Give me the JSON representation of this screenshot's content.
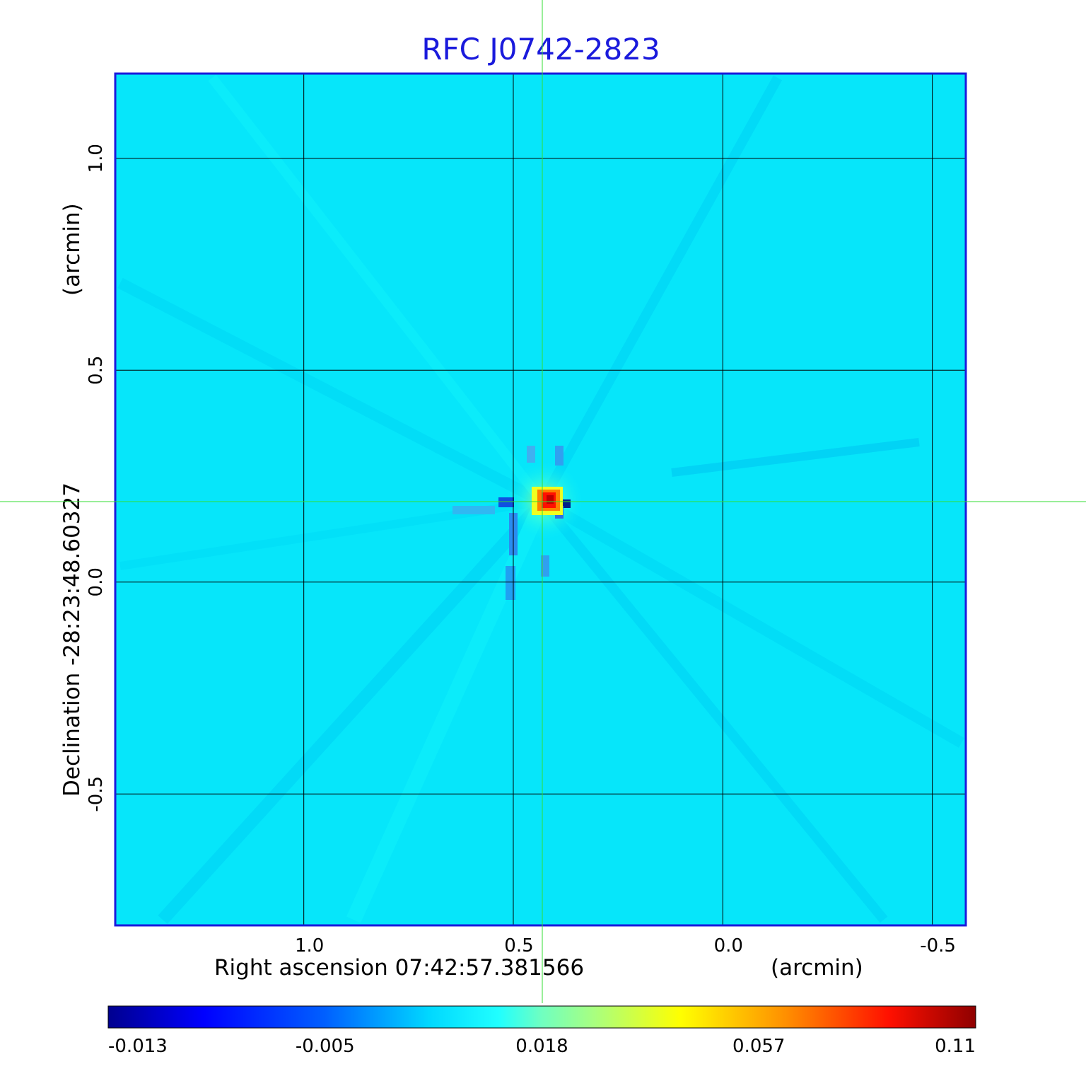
{
  "chart_data": {
    "type": "heatmap",
    "title": "RFC J0742-2823",
    "title_color": "#1a1adc",
    "frame_color": "#1a1adc",
    "crosshair_color": "#33dd33",
    "xlabel": "Right ascension  07:42:57.381566",
    "xunit": "(arcmin)",
    "ylabel": "Declination  -28:23:48.60327",
    "yunit": "(arcmin)",
    "x_ticks": [
      "1.0",
      "0.5",
      "0.0",
      "-0.5"
    ],
    "x_tick_values": [
      1.0,
      0.5,
      0.0,
      -0.5
    ],
    "y_ticks": [
      "1.0",
      "0.5",
      "0.0",
      "-0.5"
    ],
    "y_tick_values": [
      1.0,
      0.5,
      0.0,
      -0.5
    ],
    "xlim": [
      1.45,
      -0.58
    ],
    "ylim": [
      -0.81,
      1.2
    ],
    "grid": true,
    "source_peak": {
      "x": 0.43,
      "y": 0.19,
      "value": 0.11
    },
    "colorbar": {
      "colormap": "jet",
      "tick_labels": [
        "-0.013",
        "-0.005",
        "0.018",
        "0.057",
        "0.11"
      ],
      "range": [
        -0.013,
        0.11
      ]
    }
  }
}
